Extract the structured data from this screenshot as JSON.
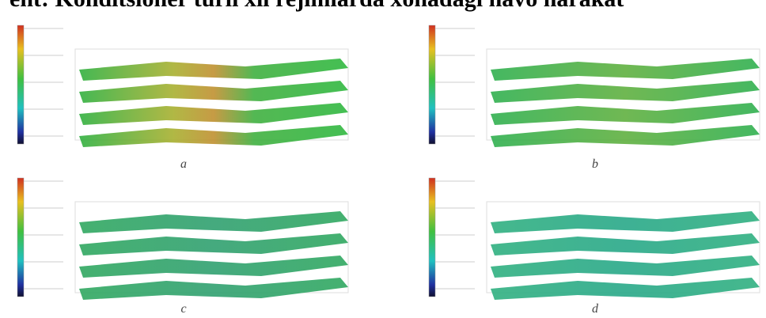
{
  "title": "ent: Konditsioner turli xil rejimlarda xonadagi havo harakat",
  "panels": [
    {
      "label": "a"
    },
    {
      "label": "b"
    },
    {
      "label": "c"
    },
    {
      "label": "d"
    }
  ]
}
